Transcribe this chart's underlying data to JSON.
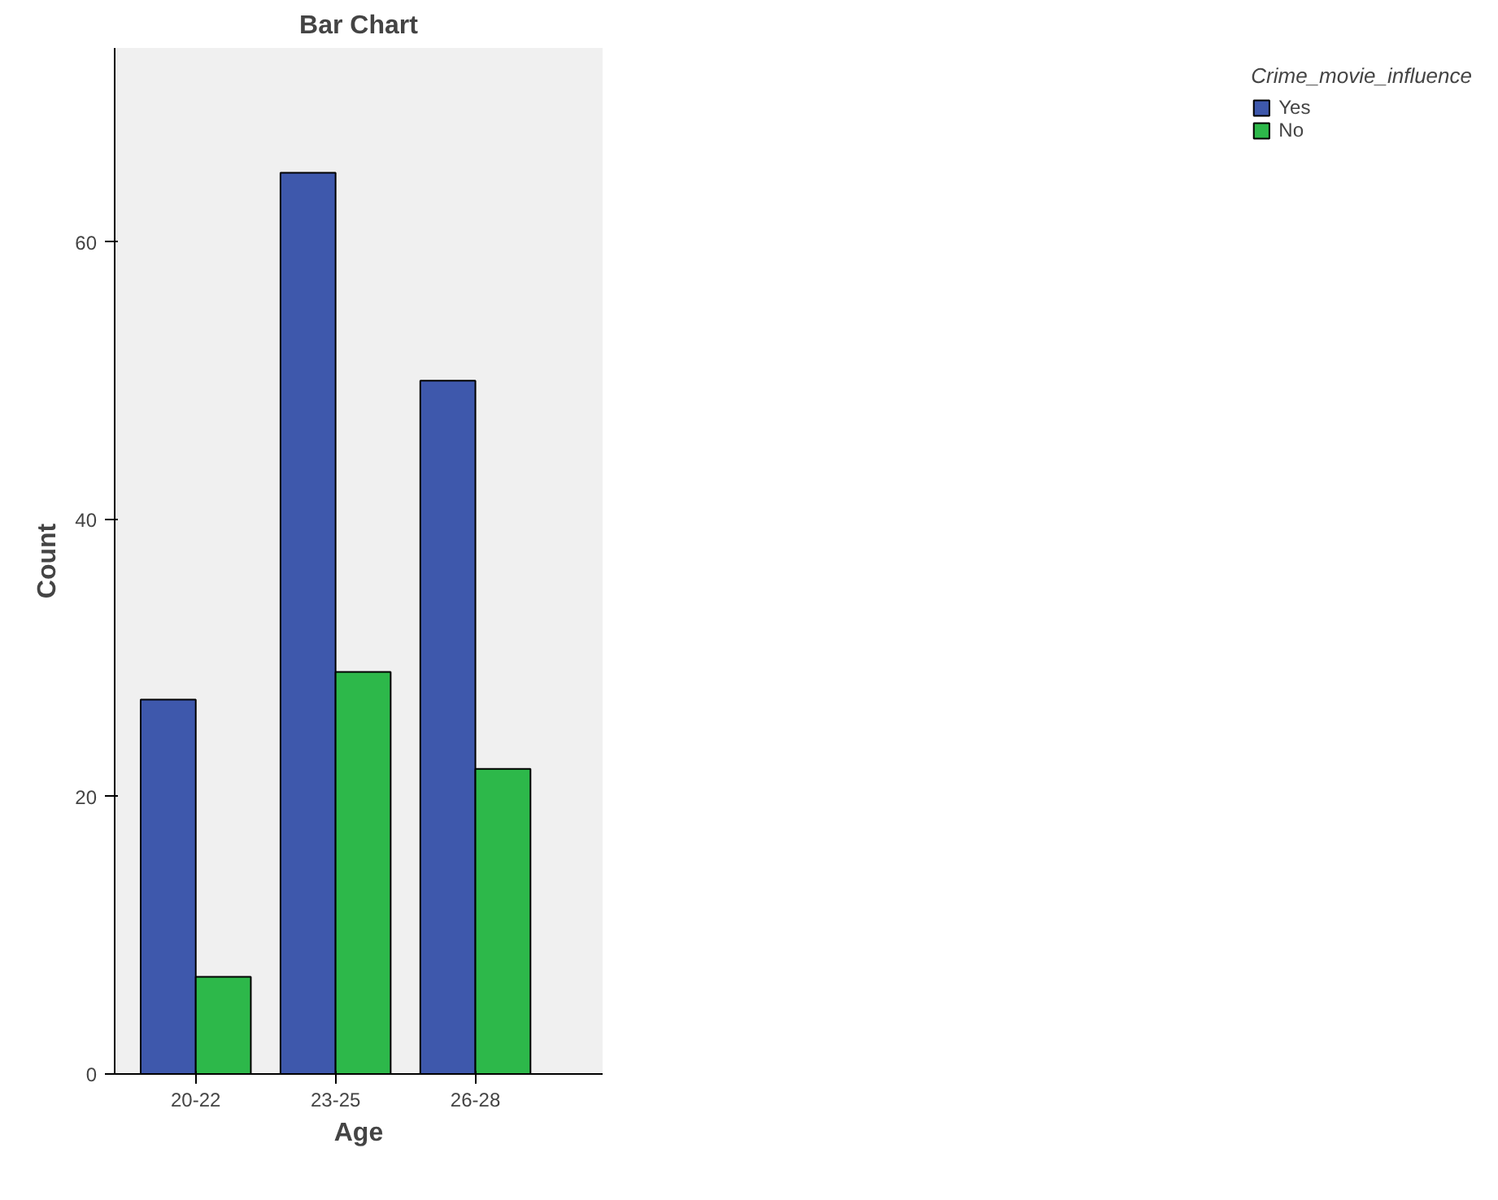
{
  "chart_data": {
    "type": "bar",
    "title": "Bar Chart",
    "xlabel": "Age",
    "ylabel": "Count",
    "legend_title": "Crime_movie_influence",
    "categories": [
      "20-22",
      "23-25",
      "26-28"
    ],
    "series": [
      {
        "name": "Yes",
        "color": "#3e58ac",
        "values": [
          27,
          65,
          50
        ]
      },
      {
        "name": "No",
        "color": "#2db84a",
        "values": [
          7,
          29,
          22
        ]
      }
    ],
    "ylim": [
      0,
      74
    ],
    "yticks": [
      0,
      20,
      40,
      60
    ],
    "grid": false,
    "legend": "top right"
  }
}
